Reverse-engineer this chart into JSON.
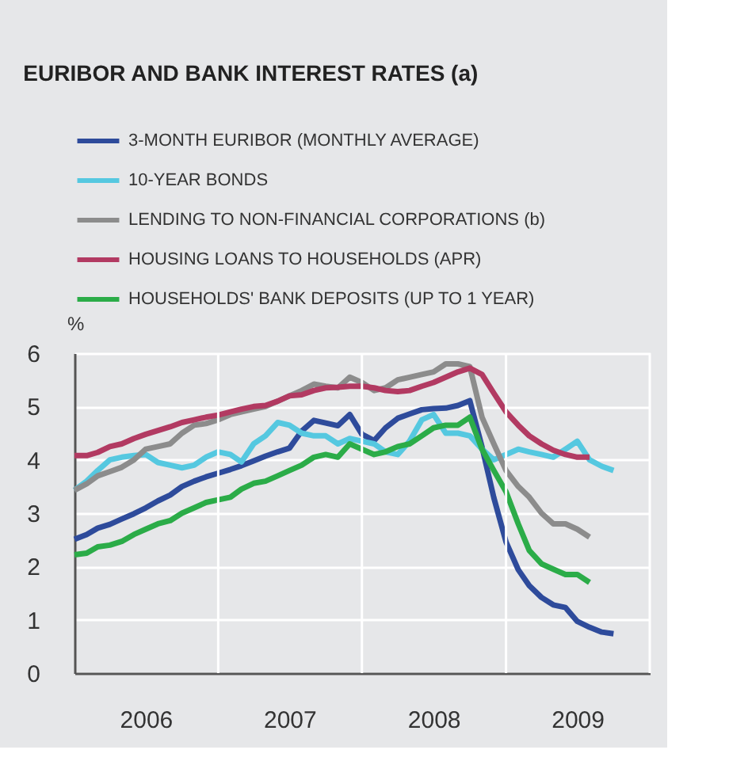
{
  "chart_data": {
    "type": "line",
    "title": "EURIBOR AND BANK INTEREST RATES (a)",
    "ylabel": "%",
    "x": [
      "2006-01",
      "2006-02",
      "2006-03",
      "2006-04",
      "2006-05",
      "2006-06",
      "2006-07",
      "2006-08",
      "2006-09",
      "2006-10",
      "2006-11",
      "2006-12",
      "2007-01",
      "2007-02",
      "2007-03",
      "2007-04",
      "2007-05",
      "2007-06",
      "2007-07",
      "2007-08",
      "2007-09",
      "2007-10",
      "2007-11",
      "2007-12",
      "2008-01",
      "2008-02",
      "2008-03",
      "2008-04",
      "2008-05",
      "2008-06",
      "2008-07",
      "2008-08",
      "2008-09",
      "2008-10",
      "2008-11",
      "2008-12",
      "2009-01",
      "2009-02",
      "2009-03",
      "2009-04",
      "2009-05",
      "2009-06",
      "2009-07",
      "2009-08",
      "2009-09",
      "2009-10"
    ],
    "series": [
      {
        "name": "3-MONTH EURIBOR (MONTHLY AVERAGE)",
        "color": "#2e4b9b",
        "values": [
          2.51,
          2.6,
          2.72,
          2.79,
          2.89,
          2.99,
          3.1,
          3.23,
          3.34,
          3.5,
          3.6,
          3.68,
          3.75,
          3.82,
          3.89,
          3.98,
          4.07,
          4.15,
          4.22,
          4.54,
          4.74,
          4.69,
          4.64,
          4.85,
          4.48,
          4.36,
          4.6,
          4.78,
          4.86,
          4.94,
          4.96,
          4.97,
          5.02,
          5.11,
          4.24,
          3.29,
          2.46,
          1.94,
          1.64,
          1.42,
          1.28,
          1.23,
          0.97,
          0.86,
          0.77,
          0.74
        ]
      },
      {
        "name": "10-YEAR BONDS",
        "color": "#55c8e0",
        "values": [
          3.43,
          3.6,
          3.8,
          4.0,
          4.05,
          4.08,
          4.1,
          3.95,
          3.9,
          3.85,
          3.9,
          4.05,
          4.15,
          4.1,
          3.96,
          4.3,
          4.45,
          4.7,
          4.65,
          4.5,
          4.45,
          4.45,
          4.3,
          4.4,
          4.35,
          4.3,
          4.15,
          4.1,
          4.35,
          4.75,
          4.85,
          4.5,
          4.5,
          4.45,
          4.2,
          4.0,
          4.1,
          4.2,
          4.15,
          4.1,
          4.05,
          4.2,
          4.35,
          4.0,
          3.88,
          3.8
        ]
      },
      {
        "name": "LENDING TO NON-FINANCIAL CORPORATIONS (b)",
        "color": "#8c8c8c",
        "values": [
          3.43,
          3.55,
          3.7,
          3.78,
          3.86,
          4.0,
          4.2,
          4.25,
          4.3,
          4.5,
          4.65,
          4.68,
          4.75,
          4.85,
          4.9,
          4.95,
          5.0,
          5.1,
          5.2,
          5.3,
          5.42,
          5.38,
          5.35,
          5.55,
          5.45,
          5.3,
          5.35,
          5.5,
          5.55,
          5.6,
          5.65,
          5.8,
          5.8,
          5.75,
          4.8,
          4.3,
          3.8,
          3.5,
          3.3,
          3.0,
          2.8,
          2.8,
          2.7,
          2.55,
          null,
          null
        ]
      },
      {
        "name": "HOUSING LOANS TO HOUSEHOLDS (APR)",
        "color": "#b23a62",
        "values": [
          4.08,
          4.08,
          4.14,
          4.25,
          4.3,
          4.4,
          4.48,
          4.55,
          4.62,
          4.7,
          4.75,
          4.8,
          4.84,
          4.9,
          4.95,
          5.0,
          5.02,
          5.1,
          5.2,
          5.22,
          5.3,
          5.35,
          5.36,
          5.38,
          5.38,
          5.35,
          5.3,
          5.28,
          5.3,
          5.38,
          5.45,
          5.55,
          5.65,
          5.72,
          5.6,
          5.25,
          4.9,
          4.65,
          4.45,
          4.3,
          4.18,
          4.1,
          4.05,
          4.05,
          null,
          null
        ]
      },
      {
        "name": "HOUSEHOLDS' BANK DEPOSITS (UP TO 1 YEAR)",
        "color": "#2bac48",
        "values": [
          2.22,
          2.25,
          2.37,
          2.4,
          2.47,
          2.6,
          2.7,
          2.8,
          2.86,
          3.0,
          3.1,
          3.2,
          3.25,
          3.3,
          3.45,
          3.56,
          3.6,
          3.7,
          3.8,
          3.9,
          4.05,
          4.1,
          4.05,
          4.3,
          4.2,
          4.1,
          4.15,
          4.25,
          4.3,
          4.45,
          4.6,
          4.65,
          4.65,
          4.8,
          4.2,
          3.8,
          3.4,
          2.8,
          2.3,
          2.05,
          1.95,
          1.85,
          1.85,
          1.7,
          null,
          null
        ]
      }
    ],
    "xlim": [
      "2006-01",
      "2010-01"
    ],
    "xticks": [
      {
        "value": "2006-07",
        "label": "2006"
      },
      {
        "value": "2007-01",
        "label": null
      },
      {
        "value": "2007-07",
        "label": "2007"
      },
      {
        "value": "2008-01",
        "label": null
      },
      {
        "value": "2008-07",
        "label": "2008"
      },
      {
        "value": "2009-01",
        "label": null
      },
      {
        "value": "2009-07",
        "label": "2009"
      },
      {
        "value": "2010-01",
        "label": null
      }
    ],
    "ylim": [
      0,
      6
    ],
    "yticks": [
      0,
      1,
      2,
      3,
      4,
      5,
      6
    ],
    "grid": true,
    "legend": "top",
    "marker": "none",
    "line_style": "solid"
  }
}
